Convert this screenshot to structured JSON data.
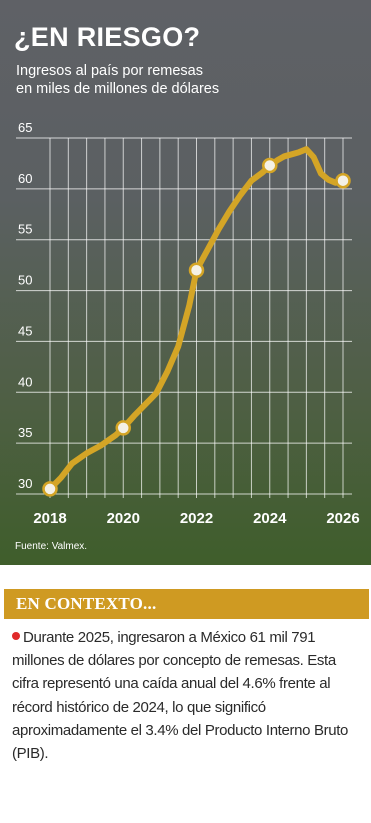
{
  "header": {
    "title": "¿EN RIESGO?",
    "subtitle_lines": [
      "Ingresos al país por remesas",
      "en miles de millones de dólares"
    ]
  },
  "chart_data": {
    "type": "line",
    "title": "¿EN RIESGO?",
    "subtitle": "Ingresos al país por remesas en miles de millones de dólares",
    "xlabel": "",
    "ylabel": "",
    "xlim": [
      2018,
      2026
    ],
    "ylim": [
      30,
      65
    ],
    "x_ticks": [
      "2018",
      "2020",
      "2022",
      "2024",
      "2026"
    ],
    "y_ticks": [
      "30",
      "35",
      "40",
      "45",
      "50",
      "55",
      "60",
      "65"
    ],
    "grid": true,
    "series": [
      {
        "x": [
          2018.0,
          2018.3,
          2018.6,
          2019.0,
          2019.4,
          2019.8,
          2020.0,
          2020.3,
          2020.6,
          2020.9,
          2021.2,
          2021.5,
          2021.8,
          2022.0,
          2022.3,
          2022.6,
          2022.9,
          2023.2,
          2023.5,
          2023.8,
          2024.0,
          2024.2,
          2024.4,
          2024.6,
          2024.8,
          2025.0,
          2025.2,
          2025.4,
          2025.6,
          2025.8,
          2026.0
        ],
        "y": [
          30.5,
          31.6,
          33.0,
          34.0,
          34.8,
          35.8,
          36.5,
          37.7,
          38.8,
          39.9,
          42.0,
          44.5,
          48.5,
          52.0,
          54.0,
          56.0,
          57.8,
          59.4,
          60.8,
          61.6,
          62.3,
          62.8,
          63.2,
          63.4,
          63.6,
          63.9,
          63.1,
          61.5,
          60.9,
          60.6,
          60.8
        ]
      }
    ],
    "highlight_points": [
      {
        "x": 2018,
        "y": 30.5
      },
      {
        "x": 2020,
        "y": 36.5
      },
      {
        "x": 2022,
        "y": 52.0
      },
      {
        "x": 2024,
        "y": 62.3
      },
      {
        "x": 2026,
        "y": 60.8
      }
    ],
    "line_color": "#d4a526",
    "marker_fill": "#f4f1e6",
    "source": "Fuente: Valmex."
  },
  "context": {
    "title": "EN CONTEXTO...",
    "text": "Durante 2025, ingresaron a México 61 mil 791 millones de dólares por concepto de remesas. Esta cifra representó una caída anual del 4.6% frente al récord histórico de 2024, lo que significó aproximadamente el 3.4% del Producto Interno Bruto (PIB).",
    "bullet_color": "#e02a2a",
    "bar_color": "#cf9a22"
  }
}
